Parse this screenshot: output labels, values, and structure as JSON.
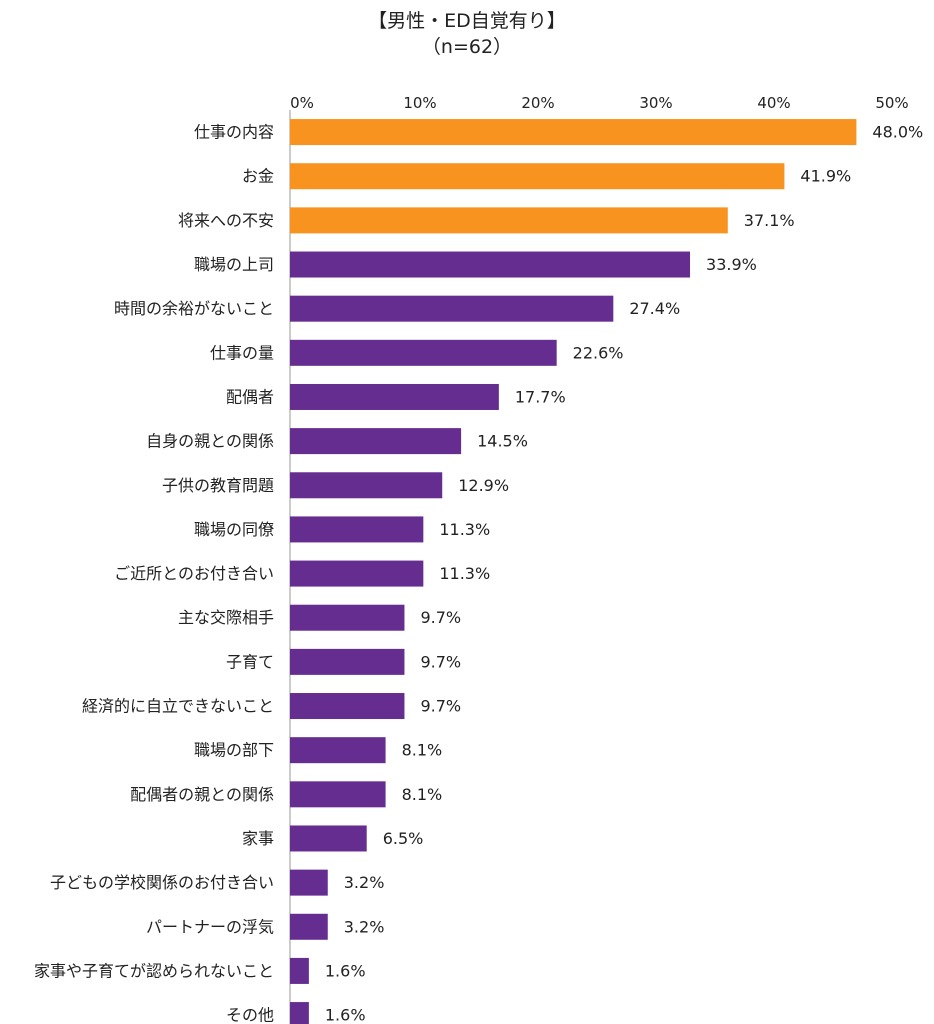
{
  "chart_data": {
    "type": "bar",
    "orientation": "horizontal",
    "title": "【男性・ED自覚有り】",
    "subtitle": "（n=62）",
    "xlim": [
      0,
      50
    ],
    "xticks": [
      "0%",
      "10%",
      "20%",
      "30%",
      "40%",
      "50%"
    ],
    "grid": false,
    "highlight_color": "#F7931E",
    "base_color": "#662D91",
    "categories": [
      "仕事の内容",
      "お金",
      "将来への不安",
      "職場の上司",
      "時間の余裕がないこと",
      "仕事の量",
      "配偶者",
      "自身の親との関係",
      "子供の教育問題",
      "職場の同僚",
      "ご近所とのお付き合い",
      "主な交際相手",
      "子育て",
      "経済的に自立できないこと",
      "職場の部下",
      "配偶者の親との関係",
      "家事",
      "子どもの学校関係のお付き合い",
      "パートナーの浮気",
      "家事や子育てが認められないこと",
      "その他"
    ],
    "values": [
      48.0,
      41.9,
      37.1,
      33.9,
      27.4,
      22.6,
      17.7,
      14.5,
      12.9,
      11.3,
      11.3,
      9.7,
      9.7,
      9.7,
      8.1,
      8.1,
      6.5,
      3.2,
      3.2,
      1.6,
      1.6
    ],
    "value_labels": [
      "48.0%",
      "41.9%",
      "37.1%",
      "33.9%",
      "27.4%",
      "22.6%",
      "17.7%",
      "14.5%",
      "12.9%",
      "11.3%",
      "11.3%",
      "9.7%",
      "9.7%",
      "9.7%",
      "8.1%",
      "8.1%",
      "6.5%",
      "3.2%",
      "3.2%",
      "1.6%",
      "1.6%"
    ],
    "highlighted": [
      true,
      true,
      true,
      false,
      false,
      false,
      false,
      false,
      false,
      false,
      false,
      false,
      false,
      false,
      false,
      false,
      false,
      false,
      false,
      false,
      false
    ]
  }
}
